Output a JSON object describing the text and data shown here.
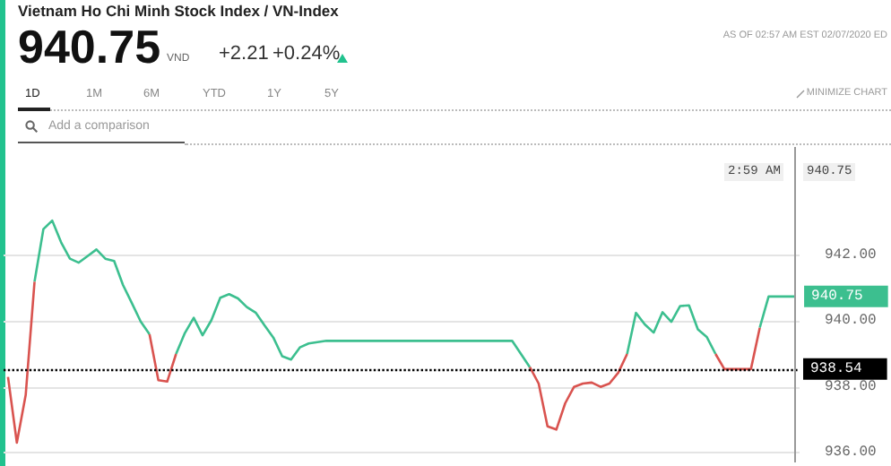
{
  "chart_data": {
    "type": "line",
    "title": "Vietnam Ho Chi Minh Stock Index / VN-Index",
    "annotations": [
      "940.75",
      "VND",
      "+2.21",
      "+0.24%",
      "AS OF 02:57 AM EST 02/07/2020 ED",
      "1D",
      "1M",
      "6M",
      "YTD",
      "1Y",
      "5Y",
      "MINIMIZE CHART",
      "Add a comparison",
      "2:59 AM",
      "940.75",
      "940.75"
    ],
    "categories": [
      null,
      null,
      null,
      null,
      null,
      null,
      null,
      null,
      null,
      null,
      null,
      null,
      null,
      null,
      null,
      null,
      null,
      null,
      null,
      null,
      null,
      null,
      null,
      null,
      null,
      null,
      null,
      null,
      null,
      null,
      null,
      null,
      null,
      null,
      null,
      null,
      null,
      null,
      null,
      null,
      null,
      null,
      null,
      null,
      null,
      null,
      null,
      null,
      null,
      null,
      null,
      null,
      null,
      null,
      null,
      null,
      null,
      null,
      null,
      null,
      null,
      null,
      null,
      null,
      null,
      null,
      null,
      null,
      null,
      null,
      null,
      null,
      null,
      null,
      null,
      null,
      null,
      null,
      null,
      null,
      null,
      null,
      null,
      null,
      null,
      null,
      null,
      null,
      null,
      null
    ],
    "series": [
      {
        "color": "#3cbf8f",
        "values": [
          null,
          null,
          null,
          941.2,
          942.8,
          943.06,
          942.4,
          941.9,
          941.78,
          941.98,
          942.18,
          941.9,
          941.83,
          941.1,
          940.55,
          939.99,
          939.6,
          null,
          null,
          939.0,
          939.64,
          940.1,
          939.57,
          940.03,
          940.71,
          940.82,
          940.69,
          940.43,
          940.26,
          939.87,
          939.5,
          938.93,
          938.83,
          939.2,
          939.32,
          939.36,
          939.4,
          939.4,
          939.4,
          939.4,
          939.4,
          939.4,
          939.4,
          939.4,
          939.4,
          939.4,
          939.4,
          939.4,
          939.4,
          939.4,
          939.4,
          939.4,
          939.4,
          939.4,
          939.4,
          939.4,
          939.4,
          939.4,
          939.0,
          938.6,
          null,
          null,
          null,
          null,
          null,
          null,
          null,
          null,
          null,
          null,
          939.0,
          940.25,
          939.9,
          939.65,
          940.27,
          939.98,
          940.46,
          940.48,
          939.75,
          939.52,
          939.0,
          null,
          null,
          null,
          null,
          939.8,
          940.75,
          940.75,
          940.75,
          940.75
        ]
      },
      {
        "color": "#d9534f",
        "values": [
          938.3,
          936.3,
          937.75,
          941.2,
          null,
          null,
          null,
          null,
          null,
          null,
          null,
          null,
          null,
          null,
          null,
          null,
          939.6,
          938.2,
          938.16,
          939.0,
          null,
          null,
          null,
          null,
          null,
          null,
          null,
          null,
          null,
          null,
          null,
          null,
          null,
          null,
          null,
          null,
          null,
          null,
          null,
          null,
          null,
          null,
          null,
          null,
          null,
          null,
          null,
          null,
          null,
          null,
          null,
          null,
          null,
          null,
          null,
          null,
          null,
          null,
          null,
          938.6,
          938.1,
          936.8,
          936.7,
          937.5,
          938.0,
          938.1,
          938.13,
          938.0,
          938.1,
          938.43,
          939.0,
          null,
          null,
          null,
          null,
          null,
          null,
          null,
          null,
          null,
          939.0,
          938.54,
          938.54,
          938.54,
          938.54,
          939.8,
          null,
          null,
          null,
          null
        ]
      }
    ],
    "ylim": [
      935.7,
      945.3
    ],
    "yticks": [
      {
        "value": 936,
        "label": "936.00"
      },
      {
        "value": 938,
        "label": "938.00"
      },
      {
        "value": 940,
        "label": "940.00"
      },
      {
        "value": 942,
        "label": "942.00"
      }
    ],
    "ref_lines": [
      {
        "axis": "y",
        "value": 938.54,
        "label": "938.54",
        "color": "#000000",
        "line_style": "dotted"
      }
    ],
    "grid": "y",
    "tick_labels": "y"
  }
}
